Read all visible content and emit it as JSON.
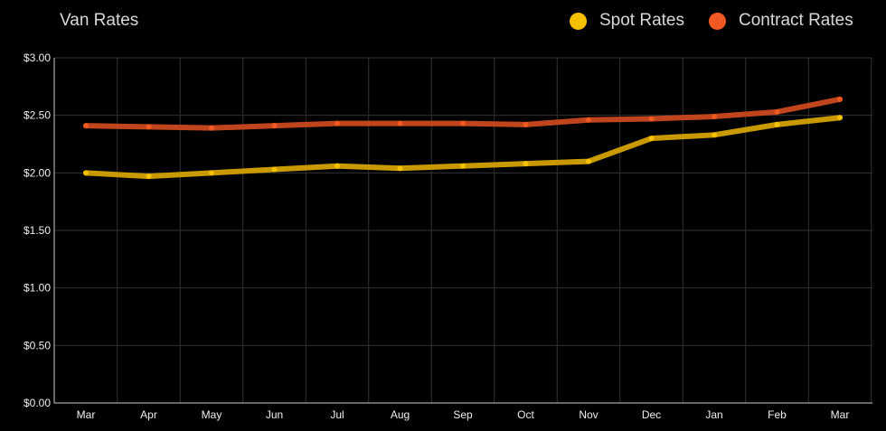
{
  "chart_data": {
    "type": "line",
    "title": "Van Rates",
    "xlabel": "",
    "ylabel": "",
    "categories": [
      "Mar",
      "Apr",
      "May",
      "Jun",
      "Jul",
      "Aug",
      "Sep",
      "Oct",
      "Nov",
      "Dec",
      "Jan",
      "Feb",
      "Mar"
    ],
    "ylim": [
      0,
      3
    ],
    "yticks": [
      "$0.00",
      "$0.50",
      "$1.00",
      "$1.50",
      "$2.00",
      "$2.50",
      "$3.00"
    ],
    "grid": true,
    "legend_position": "top-right",
    "series": [
      {
        "name": "Spot Rates",
        "color": "#f5c000",
        "line_color": "#c99a00",
        "values": [
          2.0,
          1.97,
          2.0,
          2.03,
          2.06,
          2.04,
          2.06,
          2.08,
          2.1,
          2.3,
          2.33,
          2.42,
          2.48
        ]
      },
      {
        "name": "Contract Rates",
        "color": "#f05a22",
        "line_color": "#c0451c",
        "values": [
          2.41,
          2.4,
          2.39,
          2.41,
          2.43,
          2.43,
          2.43,
          2.42,
          2.46,
          2.47,
          2.49,
          2.53,
          2.64
        ]
      }
    ]
  }
}
